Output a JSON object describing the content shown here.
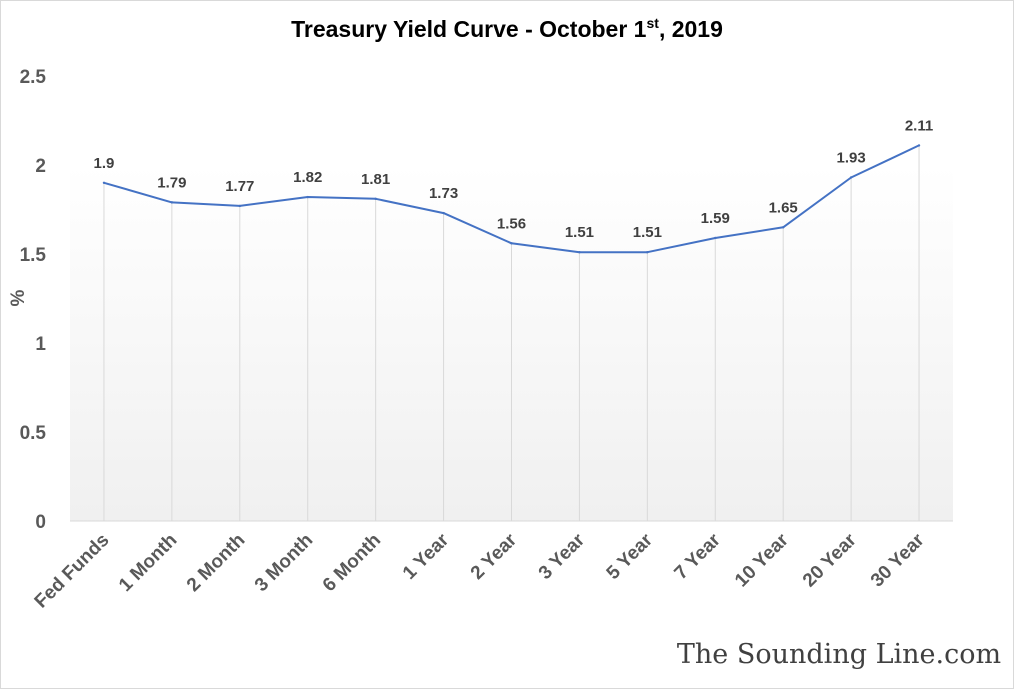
{
  "chart_data": {
    "type": "line",
    "title": "Treasury Yield Curve - October 1",
    "title_sup": "st",
    "title_end": ", 2019",
    "ylabel": "%",
    "xlabel": "",
    "ylim": [
      0,
      2.5
    ],
    "yticks": [
      "0",
      "0.5",
      "1",
      "1.5",
      "2",
      "2.5"
    ],
    "categories": [
      "Fed Funds",
      "1 Month",
      "2 Month",
      "3 Month",
      "6 Month",
      "1 Year",
      "2 Year",
      "3 Year",
      "5 Year",
      "7 Year",
      "10 Year",
      "20 Year",
      "30 Year"
    ],
    "series": [
      {
        "values": [
          1.9,
          1.79,
          1.77,
          1.82,
          1.81,
          1.73,
          1.56,
          1.51,
          1.51,
          1.59,
          1.65,
          1.93,
          2.11
        ],
        "labels": [
          "1.9",
          "1.79",
          "1.77",
          "1.82",
          "1.81",
          "1.73",
          "1.56",
          "1.51",
          "1.51",
          "1.59",
          "1.65",
          "1.93",
          "2.11"
        ],
        "color": "#4472c4"
      }
    ],
    "grid": "vertical",
    "background_gradient": [
      "#ffffff",
      "#f2f2f2"
    ]
  },
  "watermark": "The Sounding Line.com"
}
